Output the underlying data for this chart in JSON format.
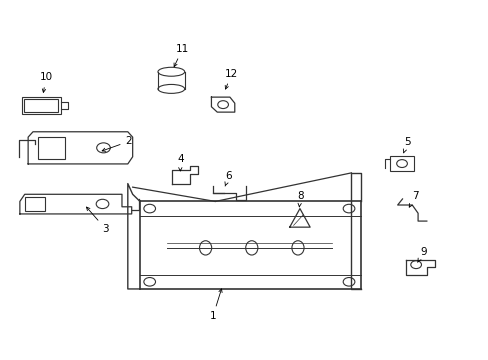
{
  "title": "",
  "background_color": "#ffffff",
  "line_color": "#333333",
  "label_color": "#000000",
  "fig_width": 4.89,
  "fig_height": 3.6,
  "dpi": 100
}
